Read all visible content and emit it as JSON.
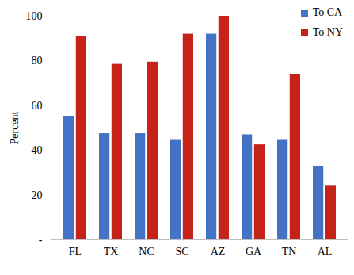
{
  "chart_data": {
    "type": "bar",
    "categories": [
      "FL",
      "TX",
      "NC",
      "SC",
      "AZ",
      "GA",
      "TN",
      "AL"
    ],
    "series": [
      {
        "name": "To CA",
        "color": "#4472c4",
        "values": [
          55,
          47.5,
          47.5,
          44.5,
          92,
          47,
          44.5,
          33
        ]
      },
      {
        "name": "To NY",
        "color": "#c5221a",
        "values": [
          91,
          78.5,
          79.5,
          92,
          100,
          42.5,
          74,
          24
        ]
      }
    ],
    "ylabel": "Percent",
    "ylim": [
      0,
      100
    ],
    "yticks": [
      {
        "value": 0,
        "label": "-"
      },
      20,
      40,
      60,
      80,
      100
    ],
    "grid": false,
    "legend": "top-right"
  }
}
